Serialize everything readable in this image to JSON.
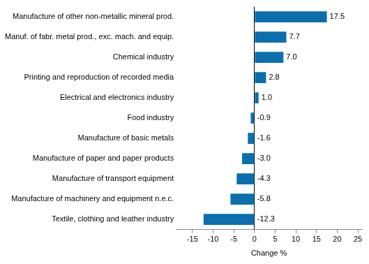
{
  "chart_data": {
    "type": "bar",
    "orientation": "horizontal",
    "categories": [
      "Manufacture of other non-metallic mineral prod.",
      "Manuf. of fabr. metal prod., exc. mach. and equip.",
      "Chemical industry",
      "Printing and reproduction of recorded media",
      "Electrical and electronics industry",
      "Food industry",
      "Manufacture of basic metals",
      "Manufacture of paper and paper products",
      "Manufacture of transport equipment",
      "Manufacture of machinery and equipment n.e.c.",
      "Textile, clothing and leather industry"
    ],
    "values": [
      17.5,
      7.7,
      7.0,
      2.8,
      1.0,
      -0.9,
      -1.6,
      -3.0,
      -4.3,
      -5.8,
      -12.3
    ],
    "value_labels": [
      "17.5",
      "7.7",
      "7.0",
      "2.8",
      "1.0",
      "-0.9",
      "-1.6",
      "-3.0",
      "-4.3",
      "-5.8",
      "-12.3"
    ],
    "color": "#0b6fae",
    "x_label": "Change %",
    "xlim": [
      -19,
      26
    ],
    "xticks": [
      -15,
      -10,
      -5,
      0,
      5,
      10,
      15,
      20,
      25
    ],
    "grid": false,
    "data_labels": true
  }
}
